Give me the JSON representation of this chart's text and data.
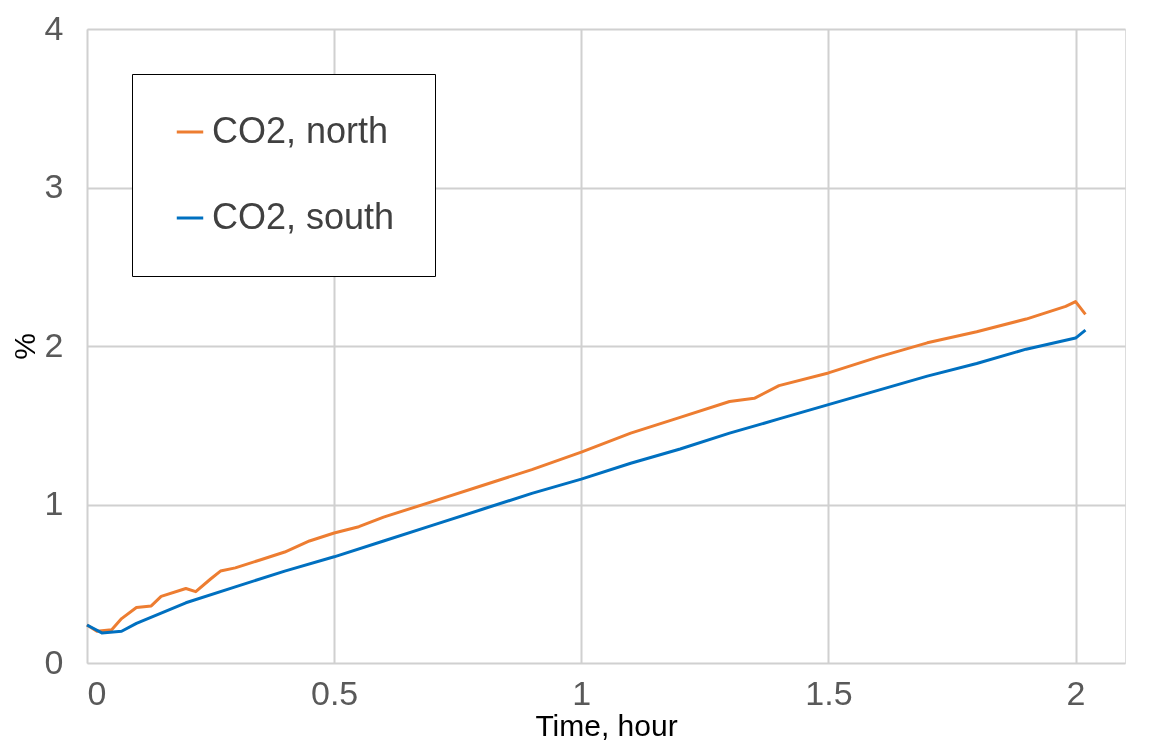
{
  "chart_data": {
    "type": "line",
    "xlabel": "Time, hour",
    "ylabel": "%",
    "xlim": [
      0,
      2.1
    ],
    "xticks": [
      0,
      0.5,
      1,
      1.5,
      2
    ],
    "ylim": [
      0,
      4
    ],
    "yticks": [
      0,
      1,
      2,
      3,
      4
    ],
    "grid": true,
    "legend": "top left",
    "marker": "none",
    "line_style": "solid",
    "series": [
      {
        "name": "CO2, north",
        "color": "#ed7d31",
        "x": [
          0,
          0.02,
          0.05,
          0.07,
          0.1,
          0.13,
          0.15,
          0.2,
          0.22,
          0.25,
          0.27,
          0.3,
          0.35,
          0.4,
          0.45,
          0.5,
          0.55,
          0.6,
          0.7,
          0.8,
          0.9,
          1.0,
          1.1,
          1.2,
          1.3,
          1.35,
          1.4,
          1.5,
          1.6,
          1.7,
          1.8,
          1.9,
          1.98,
          2.0,
          2.02
        ],
        "values": [
          0.24,
          0.2,
          0.21,
          0.28,
          0.35,
          0.36,
          0.42,
          0.47,
          0.45,
          0.53,
          0.58,
          0.6,
          0.65,
          0.7,
          0.77,
          0.82,
          0.86,
          0.92,
          1.02,
          1.12,
          1.22,
          1.33,
          1.45,
          1.55,
          1.65,
          1.67,
          1.75,
          1.83,
          1.93,
          2.02,
          2.09,
          2.17,
          2.25,
          2.28,
          2.2
        ]
      },
      {
        "name": "CO2, south",
        "color": "#0070c0",
        "x": [
          0,
          0.03,
          0.07,
          0.1,
          0.2,
          0.3,
          0.4,
          0.5,
          0.6,
          0.7,
          0.8,
          0.9,
          1.0,
          1.1,
          1.2,
          1.3,
          1.4,
          1.5,
          1.6,
          1.7,
          1.8,
          1.9,
          2.0,
          2.02
        ],
        "values": [
          0.24,
          0.19,
          0.2,
          0.25,
          0.38,
          0.48,
          0.58,
          0.67,
          0.77,
          0.87,
          0.97,
          1.07,
          1.16,
          1.26,
          1.35,
          1.45,
          1.54,
          1.63,
          1.72,
          1.81,
          1.89,
          1.98,
          2.05,
          2.1
        ]
      }
    ]
  }
}
